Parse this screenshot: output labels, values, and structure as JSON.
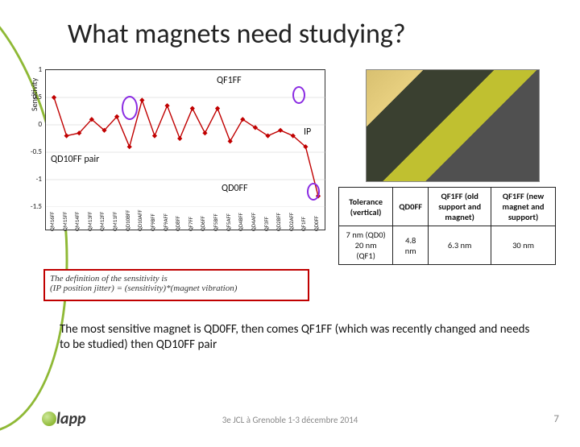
{
  "title": "What magnets need studying?",
  "chart": {
    "type": "line",
    "ylabel": "Sensitivity",
    "ylim": [
      -1.5,
      1.0
    ],
    "yticks": [
      1,
      0.5,
      0,
      -0.5,
      -1,
      -1.5
    ],
    "line_color": "#c00000",
    "marker": "diamond",
    "marker_color": "#c00000",
    "grid_color": "#cccccc",
    "border_color": "#333333",
    "categories": [
      "QM16FF",
      "QM15FF",
      "QM14FF",
      "QM13FF",
      "QM12FF",
      "QM11FF",
      "QD10BFF",
      "QD10AFF",
      "QF9BFF",
      "QF9AFF",
      "QD8FF",
      "QF7FF",
      "QD6FF",
      "QF5BFF",
      "QF5AFF",
      "QD4BFF",
      "QD4AFF",
      "QF3FF",
      "QD2BFF",
      "QD2AFF",
      "QF1FF",
      "QD0FF"
    ],
    "values": [
      0.5,
      -0.2,
      -0.15,
      0.1,
      -0.1,
      0.15,
      -0.4,
      0.45,
      -0.2,
      0.35,
      -0.25,
      0.3,
      -0.15,
      0.3,
      -0.3,
      0.1,
      -0.05,
      -0.2,
      -0.1,
      -0.2,
      -0.4,
      -1.3
    ],
    "annotations": {
      "qf1ff": "QF1FF",
      "ip": "IP",
      "qd10ff": "QD10FF pair",
      "qd0ff": "QD0FF"
    },
    "ring_colors": {
      "qd10": "#8a2be2",
      "qf1": "#8a2be2",
      "qd0": "#8a2be2"
    }
  },
  "table": {
    "headers": [
      "Tolerance (vertical)",
      "QD0FF",
      "QF1FF (old support and magnet)",
      "QF1FF (new magnet and support)"
    ],
    "rows": [
      [
        "7 nm (QD0)\n20 nm (QF1)",
        "4.8 nm",
        "6.3 nm",
        "30 nm"
      ]
    ],
    "border_color": "#222222",
    "header_bg": "#ffffff"
  },
  "definition": {
    "line1": "The definition of the sensitivity is",
    "line2": "(IP position jitter) = (sensitivity)*(magnet vibration)"
  },
  "body": "The most sensitive magnet is QD0FF, then comes QF1FF (which was recently changed and needs to be studied) then QD10FF pair",
  "footer": {
    "center": "3e JCL à Grenoble 1-3 décembre 2014",
    "page": "7"
  },
  "logo": {
    "text": "lapp",
    "accent_color": "#8fb936"
  }
}
